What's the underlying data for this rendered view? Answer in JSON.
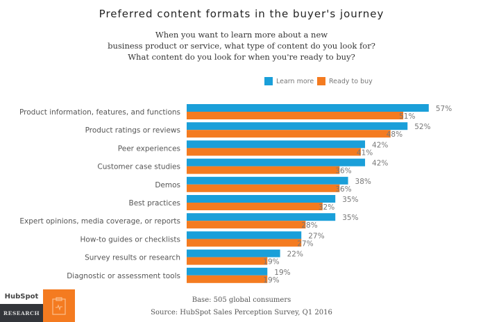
{
  "chart_data": {
    "type": "bar",
    "orientation": "horizontal",
    "title": "Preferred content formats in the buyer's journey",
    "subtitle": [
      "When you want to learn more about a new",
      "business product or service, what type of content do you look for?",
      "What content do you look for when you're ready to buy?"
    ],
    "categories": [
      "Product information, features, and functions",
      "Product ratings or reviews",
      "Peer experiences",
      "Customer case studies",
      "Demos",
      "Best practices",
      "Expert opinions, media coverage, or reports",
      "How-to guides or checklists",
      "Survey results or research",
      "Diagnostic or assessment tools"
    ],
    "series": [
      {
        "name": "Learn more",
        "color": "#1a9fd9",
        "values": [
          57,
          52,
          42,
          42,
          38,
          35,
          35,
          27,
          22,
          19
        ]
      },
      {
        "name": "Ready to buy",
        "color": "#f47b20",
        "values": [
          51,
          48,
          41,
          36,
          36,
          32,
          28,
          27,
          19,
          19
        ]
      }
    ],
    "value_suffix": "%",
    "xlim": [
      0,
      60
    ],
    "grid": false,
    "legend_position": "top-right"
  },
  "footer": {
    "base": "Base: 505 global consumers",
    "source": "Source: HubSpot Sales Perception Survey, Q1 2016"
  },
  "branding": {
    "logo": "HubSpot",
    "badge": "RESEARCH",
    "icon": "clipboard-icon"
  }
}
